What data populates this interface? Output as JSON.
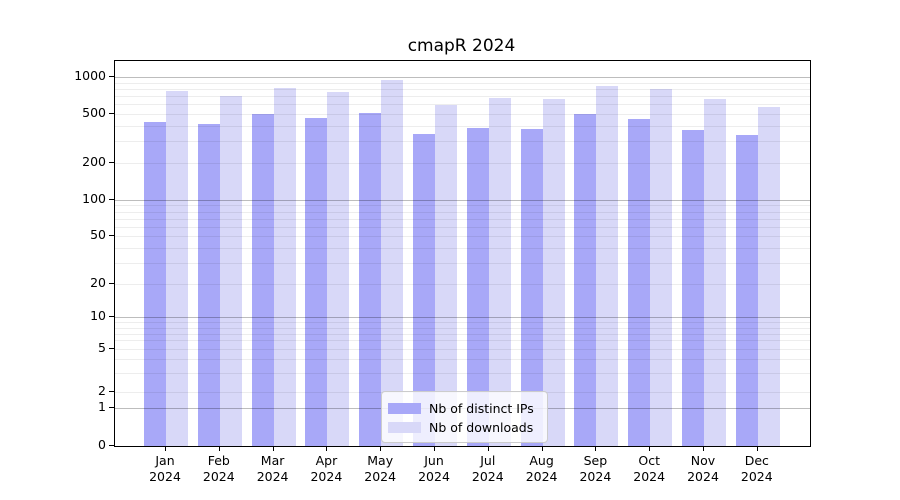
{
  "chart_data": {
    "type": "bar",
    "title": "cmapR 2024",
    "categories": [
      "Jan",
      "Feb",
      "Mar",
      "Apr",
      "May",
      "Jun",
      "Jul",
      "Aug",
      "Sep",
      "Oct",
      "Nov",
      "Dec"
    ],
    "category_year": "2024",
    "series": [
      {
        "name": "Nb of distinct IPs",
        "color": "#a8a8f8",
        "values": [
          430,
          415,
          500,
          470,
          515,
          345,
          385,
          380,
          505,
          460,
          375,
          340
        ]
      },
      {
        "name": "Nb of downloads",
        "color": "#d8d8f8",
        "values": [
          770,
          705,
          810,
          750,
          950,
          590,
          675,
          660,
          850,
          800,
          665,
          570
        ]
      }
    ],
    "y_axis": {
      "tick_labels": [
        "0",
        "1",
        "2",
        "5",
        "10",
        "20",
        "50",
        "100",
        "200",
        "500",
        "1000"
      ],
      "tick_values": [
        0,
        1,
        2,
        5,
        10,
        20,
        50,
        100,
        200,
        500,
        1000
      ],
      "scale": "log-like",
      "range": [
        0,
        1000
      ]
    },
    "grid": true,
    "legend_position": "inside-bottom-center"
  }
}
